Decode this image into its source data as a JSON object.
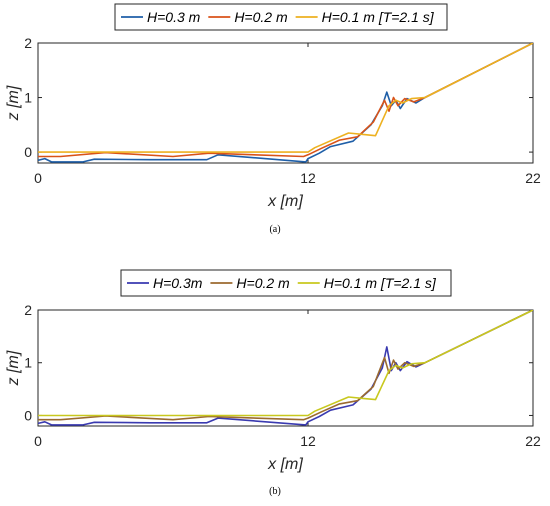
{
  "chart_data": [
    {
      "type": "line",
      "caption": "(a)",
      "xlabel": "x [m]",
      "ylabel": "z [m]",
      "xlim": [
        0,
        22
      ],
      "ylim": [
        -0.2,
        2
      ],
      "xticks": [
        0,
        12,
        22
      ],
      "yticks": [
        0,
        1,
        2
      ],
      "legend_position": "top",
      "series": [
        {
          "name": "H=0.3 m",
          "color": "#1f5fa8",
          "x": [
            0,
            0.3,
            0.6,
            2,
            2.5,
            5,
            7.5,
            8,
            11.9,
            12,
            12.5,
            13,
            14,
            14.8,
            15.3,
            15.5,
            15.7,
            15.9,
            16.1,
            16.4,
            16.8,
            17.2,
            22
          ],
          "y": [
            -0.15,
            -0.12,
            -0.18,
            -0.18,
            -0.13,
            -0.14,
            -0.14,
            -0.05,
            -0.18,
            -0.12,
            -0.02,
            0.1,
            0.2,
            0.5,
            0.85,
            1.1,
            0.85,
            0.95,
            0.8,
            0.98,
            0.9,
            1.0,
            2.0
          ]
        },
        {
          "name": "H=0.2 m",
          "color": "#d95319",
          "x": [
            0,
            1,
            3,
            6,
            7.6,
            11.8,
            12,
            12.6,
            13.4,
            14.2,
            14.9,
            15.4,
            15.6,
            15.8,
            16,
            16.3,
            16.7,
            17.2,
            22
          ],
          "y": [
            -0.08,
            -0.08,
            -0.01,
            -0.08,
            -0.02,
            -0.08,
            -0.05,
            0.07,
            0.22,
            0.28,
            0.55,
            0.95,
            0.75,
            1.0,
            0.85,
            0.98,
            0.92,
            1.0,
            2.0
          ]
        },
        {
          "name": "H=0.1 m [T=2.1 s]",
          "color": "#edb120",
          "x": [
            0,
            12,
            12.3,
            13.8,
            14.5,
            15.0,
            15.6,
            15.9,
            16.2,
            16.6,
            17.2,
            22
          ],
          "y": [
            0,
            0,
            0.08,
            0.35,
            0.32,
            0.3,
            0.85,
            0.95,
            0.9,
            0.98,
            1.0,
            2.0
          ]
        }
      ]
    },
    {
      "type": "line",
      "caption": "(b)",
      "xlabel": "x [m]",
      "ylabel": "z [m]",
      "xlim": [
        0,
        22
      ],
      "ylim": [
        -0.2,
        2
      ],
      "xticks": [
        0,
        12,
        22
      ],
      "yticks": [
        0,
        1,
        2
      ],
      "legend_position": "top",
      "series": [
        {
          "name": "H=0.3m",
          "color": "#3a3ab0",
          "x": [
            0,
            0.3,
            0.6,
            2,
            2.5,
            5,
            7.5,
            8,
            11.9,
            12,
            12.5,
            13,
            14,
            14.8,
            15.3,
            15.5,
            15.7,
            15.9,
            16.1,
            16.4,
            16.8,
            17.2,
            22
          ],
          "y": [
            -0.15,
            -0.12,
            -0.18,
            -0.18,
            -0.13,
            -0.14,
            -0.14,
            -0.05,
            -0.18,
            -0.12,
            -0.02,
            0.1,
            0.2,
            0.5,
            0.9,
            1.3,
            0.85,
            1.0,
            0.85,
            1.02,
            0.92,
            1.0,
            2.0
          ]
        },
        {
          "name": "H=0.2 m",
          "color": "#9b6a2f",
          "x": [
            0,
            1,
            3,
            6,
            7.6,
            11.8,
            12,
            12.6,
            13.4,
            14.2,
            14.9,
            15.4,
            15.6,
            15.8,
            16,
            16.3,
            16.7,
            17.2,
            22
          ],
          "y": [
            -0.08,
            -0.08,
            -0.01,
            -0.08,
            -0.02,
            -0.08,
            -0.05,
            0.07,
            0.22,
            0.28,
            0.55,
            1.1,
            0.8,
            1.05,
            0.88,
            1.0,
            0.93,
            1.0,
            2.0
          ]
        },
        {
          "name": "H=0.1 m [T=2.1 s]",
          "color": "#c8c81e",
          "x": [
            0,
            12,
            12.3,
            13.8,
            14.5,
            15.0,
            15.6,
            15.9,
            16.2,
            16.6,
            17.2,
            22
          ],
          "y": [
            0,
            0,
            0.08,
            0.35,
            0.32,
            0.3,
            0.85,
            0.95,
            0.9,
            0.98,
            1.0,
            2.0
          ]
        }
      ]
    }
  ]
}
